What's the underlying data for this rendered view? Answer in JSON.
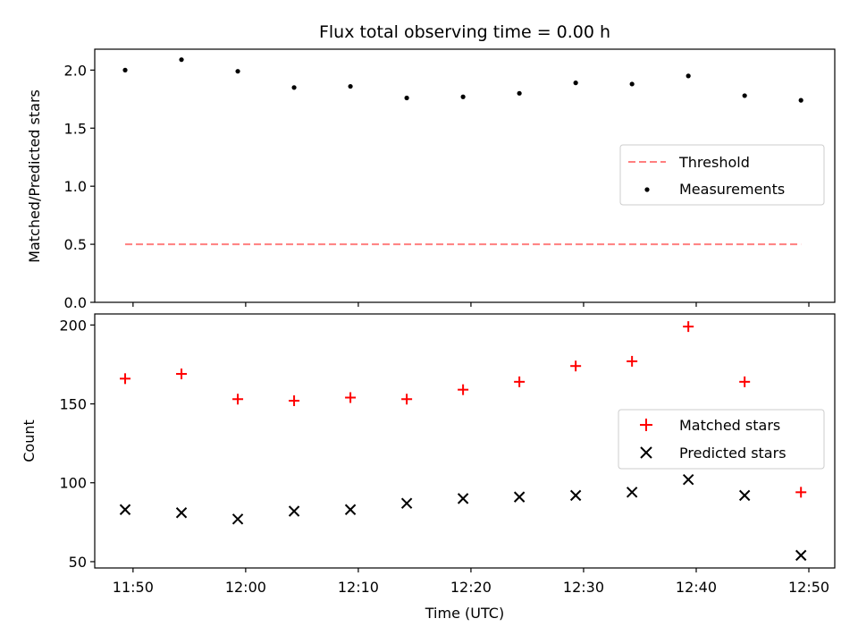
{
  "chart_data": {
    "title": "Flux total observing time = 0.00 h",
    "xlabel": "Time (UTC)",
    "x_ticks": [
      "11:50",
      "12:00",
      "12:10",
      "12:20",
      "12:30",
      "12:40",
      "12:50"
    ],
    "x": [
      "11:49.3",
      "11:54.3",
      "11:59.3",
      "12:04.3",
      "12:09.3",
      "12:14.3",
      "12:19.3",
      "12:24.3",
      "12:29.3",
      "12:34.3",
      "12:39.3",
      "12:44.3",
      "12:49.3"
    ],
    "xlim": [
      "11:46.6",
      "12:52.3"
    ],
    "panels": [
      {
        "type": "scatter",
        "ylabel": "Matched/Predicted stars",
        "ylim": [
          0,
          2.18
        ],
        "yticks": [
          "0.0",
          "0.5",
          "1.0",
          "1.5",
          "2.0"
        ],
        "series": [
          {
            "name": "Threshold",
            "kind": "dashed-line",
            "color": "#ff7f7f",
            "values": [
              0.5,
              0.5
            ]
          },
          {
            "name": "Measurements",
            "kind": "dot",
            "color": "#000000",
            "values": [
              2.0,
              2.09,
              1.99,
              1.85,
              1.86,
              1.76,
              1.77,
              1.8,
              1.89,
              1.88,
              1.95,
              1.78,
              1.74
            ]
          }
        ],
        "legend": "center-right"
      },
      {
        "type": "scatter",
        "ylabel": "Count",
        "ylim": [
          46,
          207
        ],
        "yticks": [
          "50",
          "100",
          "150",
          "200"
        ],
        "series": [
          {
            "name": "Matched stars",
            "kind": "plus",
            "color": "#ff0000",
            "values": [
              166,
              169,
              153,
              152,
              154,
              153,
              159,
              164,
              174,
              177,
              199,
              164,
              94
            ]
          },
          {
            "name": "Predicted stars",
            "kind": "cross",
            "color": "#000000",
            "values": [
              83,
              81,
              77,
              82,
              83,
              87,
              90,
              91,
              92,
              94,
              102,
              92,
              54
            ]
          }
        ],
        "legend": "center-right"
      }
    ]
  }
}
